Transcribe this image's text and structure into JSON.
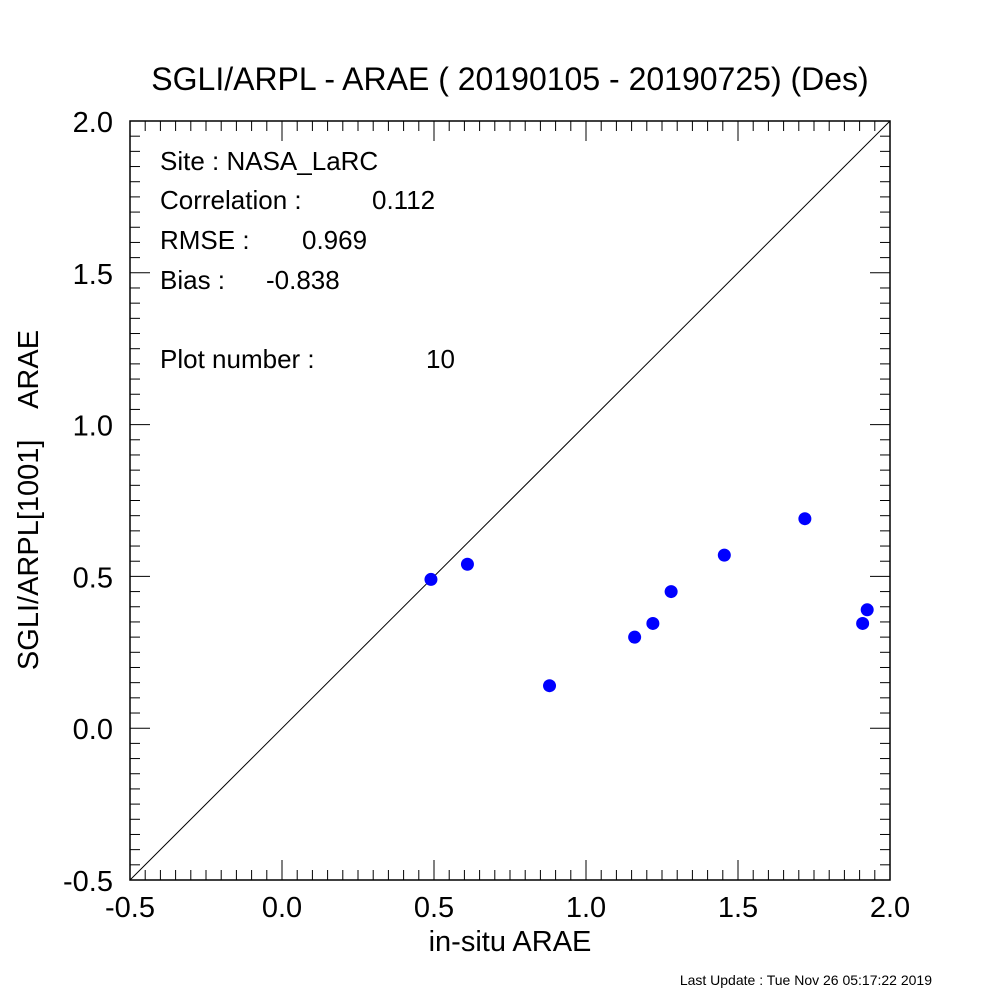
{
  "chart_data": {
    "type": "scatter",
    "title": "SGLI/ARPL - ARAE ( 20190105 - 20190725) (Des)",
    "xlabel": "in-situ ARAE",
    "ylabel": "SGLI/ARPL[1001]    ARAE",
    "xlim": [
      -0.5,
      2.0
    ],
    "ylim": [
      -0.5,
      2.0
    ],
    "xticks": [
      "-0.5",
      "0.0",
      "0.5",
      "1.0",
      "1.5",
      "2.0"
    ],
    "yticks": [
      "-0.5",
      "0.0",
      "0.5",
      "1.0",
      "1.5",
      "2.0"
    ],
    "reference_line": "1:1",
    "point_color": "#0000ff",
    "points": [
      {
        "x": 0.49,
        "y": 0.49
      },
      {
        "x": 0.61,
        "y": 0.54
      },
      {
        "x": 0.88,
        "y": 0.14
      },
      {
        "x": 1.16,
        "y": 0.3
      },
      {
        "x": 1.22,
        "y": 0.345
      },
      {
        "x": 1.28,
        "y": 0.45
      },
      {
        "x": 1.455,
        "y": 0.57
      },
      {
        "x": 1.72,
        "y": 0.69
      },
      {
        "x": 1.91,
        "y": 0.345
      },
      {
        "x": 1.925,
        "y": 0.39
      }
    ]
  },
  "stats": {
    "site": "Site : NASA_LaRC",
    "correlation_label": "Correlation :",
    "correlation_value": "0.112",
    "rmse_label": "RMSE :",
    "rmse_value": "0.969",
    "bias_label": "Bias :",
    "bias_value": "-0.838",
    "plot_number_label": "Plot number :",
    "plot_number_value": "10"
  },
  "footer": "Last Update : Tue Nov 26 05:17:22 2019"
}
